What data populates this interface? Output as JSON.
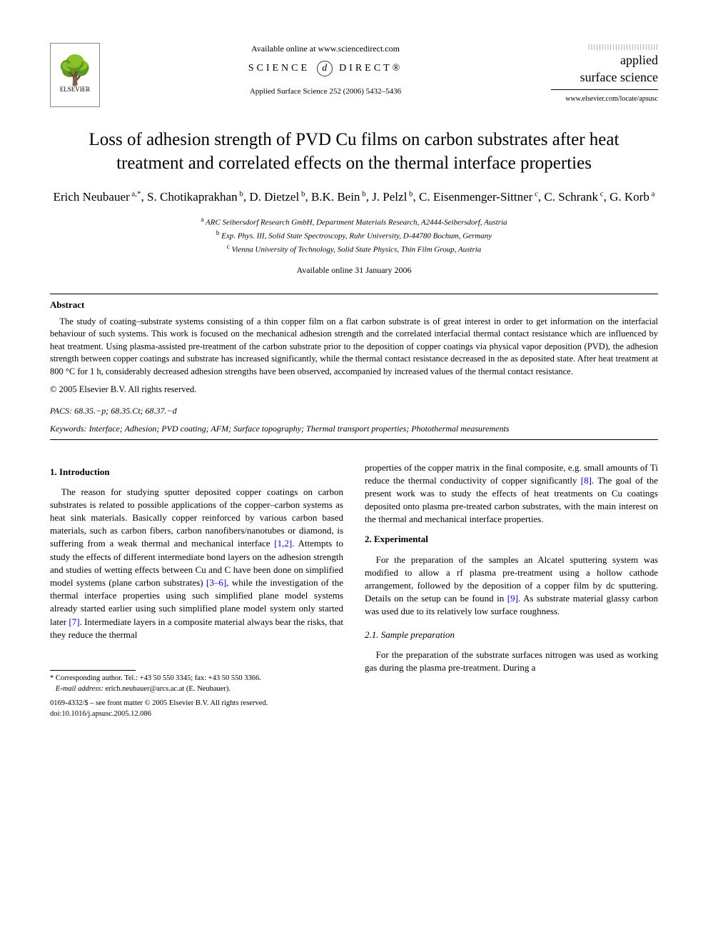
{
  "header": {
    "publisher": "ELSEVIER",
    "available_online": "Available online at www.sciencedirect.com",
    "sciencedirect_pre": "SCIENCE",
    "sciencedirect_at": "d",
    "sciencedirect_post": "DIRECT®",
    "journal_ref": "Applied Surface Science 252 (2006) 5432–5436",
    "journal_name_line1": "applied",
    "journal_name_line2": "surface science",
    "journal_url": "www.elsevier.com/locate/apsusc"
  },
  "title": "Loss of adhesion strength of PVD Cu films on carbon substrates after heat treatment and correlated effects on the thermal interface properties",
  "authors_html": "Erich Neubauer<sup> a,*</sup>, S. Chotikaprakhan<sup> b</sup>, D. Dietzel<sup> b</sup>, B.K. Bein<sup> b</sup>, J. Pelzl<sup> b</sup>, C. Eisenmenger-Sittner<sup> c</sup>, C. Schrank<sup> c</sup>, G. Korb<sup> a</sup>",
  "affiliations": [
    {
      "sup": "a",
      "text": "ARC Seibersdorf Research GmbH, Department Materials Research, A2444-Seibersdorf, Austria"
    },
    {
      "sup": "b",
      "text": "Exp. Phys. III, Solid State Spectroscopy, Ruhr University, D-44780 Bochum, Germany"
    },
    {
      "sup": "c",
      "text": "Vienna University of Technology, Solid State Physics, Thin Film Group, Austria"
    }
  ],
  "received": "Available online 31 January 2006",
  "abstract": {
    "heading": "Abstract",
    "text": "The study of coating–substrate systems consisting of a thin copper film on a flat carbon substrate is of great interest in order to get information on the interfacial behaviour of such systems. This work is focused on the mechanical adhesion strength and the correlated interfacial thermal contact resistance which are influenced by heat treatment. Using plasma-assisted pre-treatment of the carbon substrate prior to the deposition of copper coatings via physical vapor deposition (PVD), the adhesion strength between copper coatings and substrate has increased significantly, while the thermal contact resistance decreased in the as deposited state. After heat treatment at 800 °C for 1 h, considerably decreased adhesion strengths have been observed, accompanied by increased values of the thermal contact resistance.",
    "copyright": "© 2005 Elsevier B.V. All rights reserved."
  },
  "pacs": {
    "label": "PACS:",
    "codes": "68.35.−p; 68.35.Ct; 68.37.−d"
  },
  "keywords": {
    "label": "Keywords:",
    "list": "Interface; Adhesion; PVD coating; AFM; Surface topography; Thermal transport properties; Photothermal measurements"
  },
  "sections": {
    "intro_heading": "1. Introduction",
    "intro_p1_a": "The reason for studying sputter deposited copper coatings on carbon substrates is related to possible applications of the copper–carbon systems as heat sink materials. Basically copper reinforced by various carbon based materials, such as carbon fibers, carbon nanofibers/nanotubes or diamond, is suffering from a weak thermal and mechanical interface ",
    "intro_ref12": "[1,2]",
    "intro_p1_b": ". Attempts to study the effects of different intermediate bond layers on the adhesion strength and studies of wetting effects between Cu and C have been done on simplified model systems (plane carbon substrates) ",
    "intro_ref36": "[3–6]",
    "intro_p1_c": ", while the investigation of the thermal interface properties using such simplified plane model systems already started earlier using such simplified plane model system only started later ",
    "intro_ref7": "[7]",
    "intro_p1_d": ". Intermediate layers in a composite material always bear the risks, that they reduce the thermal",
    "intro_p2_a": "properties of the copper matrix in the final composite, e.g. small amounts of Ti reduce the thermal conductivity of copper significantly ",
    "intro_ref8": "[8]",
    "intro_p2_b": ". The goal of the present work was to study the effects of heat treatments on Cu coatings deposited onto plasma pre-treated carbon substrates, with the main interest on the thermal and mechanical interface properties.",
    "exp_heading": "2. Experimental",
    "exp_p1_a": "For the preparation of the samples an Alcatel sputtering system was modified to allow a rf plasma pre-treatment using a hollow cathode arrangement, followed by the deposition of a copper film by dc sputtering. Details on the setup can be found in ",
    "exp_ref9": "[9]",
    "exp_p1_b": ". As substrate material glassy carbon was used due to its relatively low surface roughness.",
    "sub_heading": "2.1. Sample preparation",
    "sub_p1": "For the preparation of the substrate surfaces nitrogen was used as working gas during the plasma pre-treatment. During a"
  },
  "footnote": {
    "corr": "* Corresponding author. Tel.: +43 50 550 3345; fax: +43 50 550 3366.",
    "email_label": "E-mail address:",
    "email": "erich.neubauer@arcs.ac.at (E. Neubauer).",
    "front_matter": "0169-4332/$ – see front matter © 2005 Elsevier B.V. All rights reserved.",
    "doi": "doi:10.1016/j.apsusc.2005.12.086"
  },
  "colors": {
    "text": "#000000",
    "background": "#ffffff",
    "link": "#0000cc",
    "rule": "#000000"
  }
}
